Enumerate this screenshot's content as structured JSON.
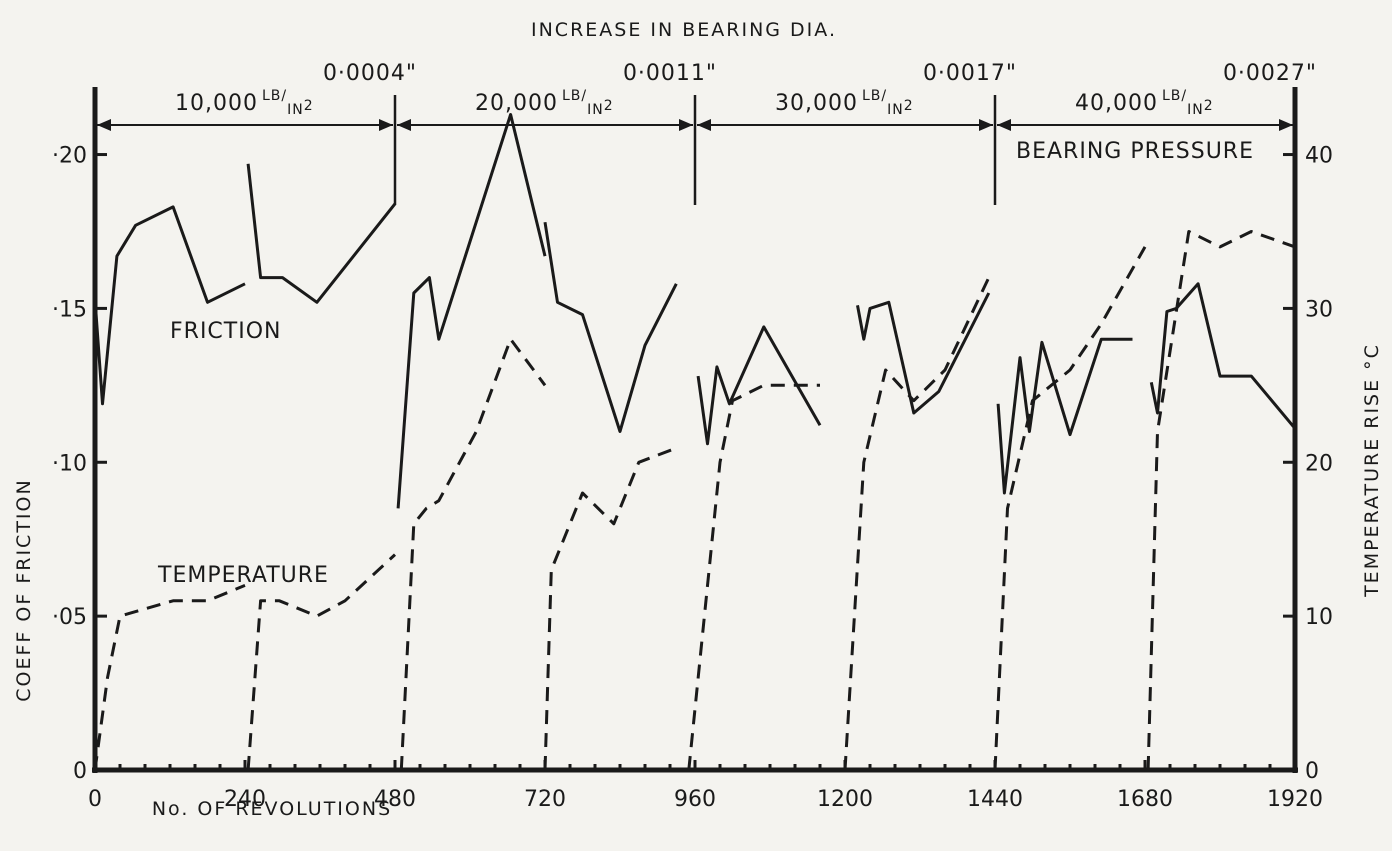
{
  "chart_data": {
    "type": "line",
    "title": "INCREASE IN BEARING DIA.",
    "xlabel": "No. OF REVOLUTIONS",
    "ylabel_left": "COEFF OF FRICTION",
    "ylabel_right": "TEMPERATURE RISE °C",
    "xlim": [
      0,
      1920
    ],
    "ylim_left": [
      0,
      0.22
    ],
    "ylim_right": [
      0,
      44
    ],
    "x_ticks": [
      "0",
      "240",
      "480",
      "720",
      "960",
      "1200",
      "1440",
      "1680",
      "1920"
    ],
    "y_left_ticks": [
      "0",
      "·05",
      "·10",
      "·15",
      "·20"
    ],
    "y_right_ticks": [
      "0",
      "10",
      "20",
      "30",
      "40"
    ],
    "grid": false,
    "top_labels": [
      "0·0004\"",
      "0·0011\"",
      "0·0017\"",
      "0·0027\""
    ],
    "bearing_pressure_label": "BEARING PRESSURE",
    "pressure_bands": [
      {
        "label": "10,000",
        "unit_num": "LB",
        "unit_den": "IN",
        "unit_exp": "2",
        "x_start": 0,
        "x_end": 480
      },
      {
        "label": "20,000",
        "unit_num": "LB",
        "unit_den": "IN",
        "unit_exp": "2",
        "x_start": 480,
        "x_end": 960
      },
      {
        "label": "30,000",
        "unit_num": "LB",
        "unit_den": "IN",
        "unit_exp": "2",
        "x_start": 960,
        "x_end": 1440
      },
      {
        "label": "40,000",
        "unit_num": "LB",
        "unit_den": "IN",
        "unit_exp": "2",
        "x_start": 1440,
        "x_end": 1920
      }
    ],
    "series": [
      {
        "name": "FRICTION",
        "axis": "left",
        "style": "solid",
        "segments": [
          [
            [
              0,
              0.153
            ],
            [
              12,
              0.119
            ],
            [
              35,
              0.167
            ],
            [
              65,
              0.177
            ],
            [
              125,
              0.183
            ],
            [
              180,
              0.152
            ],
            [
              240,
              0.158
            ]
          ],
          [
            [
              245,
              0.197
            ],
            [
              265,
              0.16
            ],
            [
              300,
              0.16
            ],
            [
              355,
              0.152
            ],
            [
              480,
              0.184
            ]
          ],
          [
            [
              485,
              0.085
            ],
            [
              510,
              0.155
            ],
            [
              535,
              0.16
            ],
            [
              550,
              0.14
            ],
            [
              665,
              0.213
            ],
            [
              720,
              0.167
            ]
          ],
          [
            [
              720,
              0.178
            ],
            [
              740,
              0.152
            ],
            [
              780,
              0.148
            ],
            [
              840,
              0.11
            ],
            [
              880,
              0.138
            ],
            [
              930,
              0.158
            ]
          ],
          [
            [
              965,
              0.128
            ],
            [
              980,
              0.106
            ],
            [
              995,
              0.131
            ],
            [
              1015,
              0.119
            ],
            [
              1070,
              0.144
            ],
            [
              1160,
              0.112
            ]
          ],
          [
            [
              1220,
              0.151
            ],
            [
              1230,
              0.14
            ],
            [
              1240,
              0.15
            ],
            [
              1270,
              0.152
            ],
            [
              1310,
              0.116
            ],
            [
              1350,
              0.123
            ],
            [
              1430,
              0.155
            ]
          ],
          [
            [
              1445,
              0.119
            ],
            [
              1455,
              0.09
            ],
            [
              1480,
              0.134
            ],
            [
              1495,
              0.11
            ],
            [
              1515,
              0.139
            ],
            [
              1560,
              0.109
            ],
            [
              1610,
              0.14
            ],
            [
              1660,
              0.14
            ]
          ],
          [
            [
              1690,
              0.126
            ],
            [
              1700,
              0.116
            ],
            [
              1715,
              0.149
            ],
            [
              1730,
              0.15
            ],
            [
              1765,
              0.158
            ],
            [
              1800,
              0.128
            ],
            [
              1850,
              0.128
            ],
            [
              1920,
              0.111
            ]
          ]
        ]
      },
      {
        "name": "TEMPERATURE",
        "axis": "right",
        "style": "dashed",
        "segments": [
          [
            [
              0,
              0
            ],
            [
              20,
              6
            ],
            [
              40,
              10
            ],
            [
              125,
              11
            ],
            [
              180,
              11
            ],
            [
              240,
              12
            ]
          ],
          [
            [
              245,
              0
            ],
            [
              265,
              11
            ],
            [
              295,
              11
            ],
            [
              355,
              10
            ],
            [
              400,
              11
            ],
            [
              480,
              14
            ]
          ],
          [
            [
              490,
              0
            ],
            [
              510,
              16
            ],
            [
              530,
              17
            ],
            [
              550,
              17.5
            ],
            [
              610,
              22
            ],
            [
              665,
              28
            ],
            [
              720,
              25
            ]
          ],
          [
            [
              720,
              0
            ],
            [
              730,
              13
            ],
            [
              780,
              18
            ],
            [
              830,
              16
            ],
            [
              870,
              20
            ],
            [
              935,
              21
            ]
          ],
          [
            [
              950,
              0
            ],
            [
              1000,
              20
            ],
            [
              1020,
              24
            ],
            [
              1070,
              25
            ],
            [
              1160,
              25
            ]
          ],
          [
            [
              1200,
              0
            ],
            [
              1230,
              20
            ],
            [
              1265,
              26
            ],
            [
              1310,
              24
            ],
            [
              1360,
              26
            ],
            [
              1430,
              32
            ]
          ],
          [
            [
              1440,
              0
            ],
            [
              1460,
              17
            ],
            [
              1500,
              24
            ],
            [
              1560,
              26
            ],
            [
              1610,
              29
            ],
            [
              1680,
              34
            ]
          ],
          [
            [
              1685,
              0
            ],
            [
              1700,
              22
            ],
            [
              1750,
              35
            ],
            [
              1800,
              34
            ],
            [
              1850,
              35
            ],
            [
              1920,
              34
            ]
          ]
        ]
      }
    ]
  }
}
